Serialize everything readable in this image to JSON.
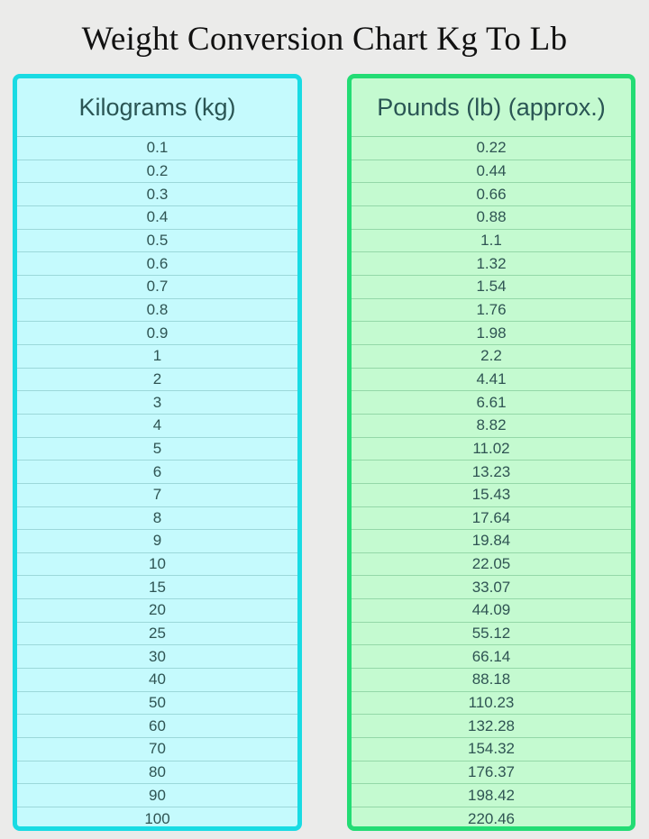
{
  "title": "Weight Conversion Chart Kg To Lb",
  "colors": {
    "kg_border": "#19dbe3",
    "kg_fill": "#c5fafd",
    "lb_border": "#23dc74",
    "lb_fill": "#c4fad0"
  },
  "columns": {
    "kg": {
      "header": "Kilograms (kg)",
      "values": [
        "0.1",
        "0.2",
        "0.3",
        "0.4",
        "0.5",
        "0.6",
        "0.7",
        "0.8",
        "0.9",
        "1",
        "2",
        "3",
        "4",
        "5",
        "6",
        "7",
        "8",
        "9",
        "10",
        "15",
        "20",
        "25",
        "30",
        "40",
        "50",
        "60",
        "70",
        "80",
        "90",
        "100"
      ]
    },
    "lb": {
      "header": "Pounds (lb) (approx.)",
      "values": [
        "0.22",
        "0.44",
        "0.66",
        "0.88",
        "1.1",
        "1.32",
        "1.54",
        "1.76",
        "1.98",
        "2.2",
        "4.41",
        "6.61",
        "8.82",
        "11.02",
        "13.23",
        "15.43",
        "17.64",
        "19.84",
        "22.05",
        "33.07",
        "44.09",
        "55.12",
        "66.14",
        "88.18",
        "110.23",
        "132.28",
        "154.32",
        "176.37",
        "198.42",
        "220.46"
      ]
    }
  }
}
